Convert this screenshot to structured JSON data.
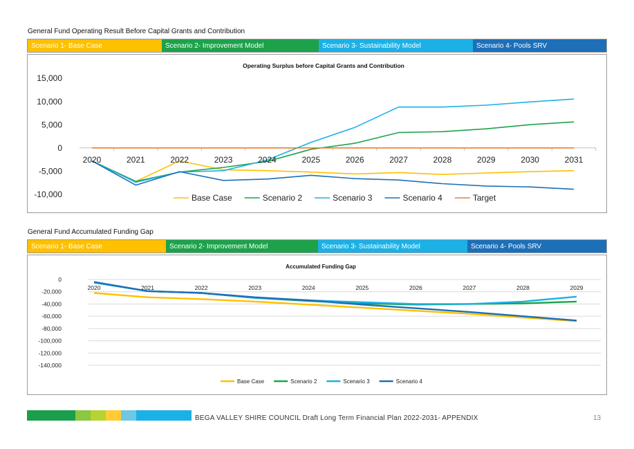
{
  "sections": [
    {
      "title": "General Fund Operating Result Before Capital Grants and Contribution",
      "legend_bar": [
        {
          "label": "Scenario 1- Base Case",
          "color": "#FFC000",
          "text_color": "#ffffff"
        },
        {
          "label": "Scenario 2- Improvement Model",
          "color": "#1DA24B",
          "text_color": "#ffffff"
        },
        {
          "label": "Scenario 3- Sustainability Model",
          "color": "#1BB1E6",
          "text_color": "#ffffff"
        },
        {
          "label": "Scenario 4- Pools SRV",
          "color": "#1D6FB8",
          "text_color": "#ffffff"
        }
      ]
    },
    {
      "title": "General Fund Accumulated Funding Gap",
      "legend_bar": [
        {
          "label": "Scenario 1- Base Case",
          "color": "#FFC000",
          "text_color": "#ffffff"
        },
        {
          "label": "Scenario 2- Improvement Model",
          "color": "#1DA24B",
          "text_color": "#ffffff"
        },
        {
          "label": "Scenario 3- Sustainability Model",
          "color": "#1BB1E6",
          "text_color": "#ffffff"
        },
        {
          "label": "Scenario 4- Pools SRV",
          "color": "#1D6FB8",
          "text_color": "#ffffff"
        }
      ]
    }
  ],
  "chart_data": [
    {
      "type": "line",
      "title": "Operating Surplus before Capital Grants and Contribution",
      "xlabel": "",
      "ylabel": "",
      "categories": [
        "2020",
        "2021",
        "2022",
        "2023",
        "2024",
        "2025",
        "2026",
        "2027",
        "2028",
        "2029",
        "2030",
        "2031"
      ],
      "ylim": [
        -10000,
        15000
      ],
      "yticks": [
        15000,
        10000,
        5000,
        0,
        -5000,
        -10000
      ],
      "ytick_labels": [
        "15,000",
        "10,000",
        "5,000",
        "0",
        "-5,000",
        "-10,000"
      ],
      "grid": false,
      "legend_position": "bottom",
      "series": [
        {
          "name": "Base Case",
          "color": "#FFC000",
          "values": [
            -2800,
            -7200,
            -2800,
            -4700,
            -4900,
            -5200,
            -5600,
            -5300,
            -5700,
            -5400,
            -5100,
            -4900
          ]
        },
        {
          "name": "Scenario 2",
          "color": "#1DA24B",
          "values": [
            -2800,
            -7200,
            -5200,
            -4200,
            -2900,
            -300,
            1000,
            3300,
            3500,
            4100,
            5000,
            5600
          ]
        },
        {
          "name": "Scenario 3",
          "color": "#1BB1E6",
          "values": [
            -2800,
            -7400,
            -5200,
            -4900,
            -2600,
            1200,
            4400,
            8800,
            8800,
            9200,
            9900,
            10500
          ]
        },
        {
          "name": "Scenario 4",
          "color": "#1D6FB8",
          "values": [
            -2800,
            -8000,
            -5100,
            -7000,
            -6700,
            -5900,
            -6600,
            -6900,
            -7700,
            -8200,
            -8400,
            -8900
          ]
        },
        {
          "name": "Target",
          "color": "#ED7D31",
          "values": [
            0,
            0,
            0,
            0,
            0,
            0,
            0,
            0,
            0,
            0,
            0,
            0
          ]
        }
      ]
    },
    {
      "type": "line",
      "title": "Accumulated Funding Gap",
      "xlabel": "",
      "ylabel": "",
      "categories": [
        "2020",
        "2021",
        "2022",
        "2023",
        "2024",
        "2025",
        "2026",
        "2027",
        "2028",
        "2029"
      ],
      "ylim": [
        -140000,
        0
      ],
      "yticks": [
        0,
        -20000,
        -40000,
        -60000,
        -80000,
        -100000,
        -120000,
        -140000
      ],
      "ytick_labels": [
        "0",
        "-20,000",
        "-40,000",
        "-60,000",
        "-80,000",
        "-100,000",
        "-120,000",
        "-140,000"
      ],
      "grid": true,
      "legend_position": "bottom",
      "series": [
        {
          "name": "Base Case",
          "color": "#FFC000",
          "values": [
            -22000,
            -29000,
            -32000,
            -36000,
            -41000,
            -46000,
            -51000,
            -56000,
            -62000,
            -68000
          ]
        },
        {
          "name": "Scenario 2",
          "color": "#1DA24B",
          "values": [
            -5000,
            -19000,
            -22000,
            -30000,
            -35000,
            -39000,
            -41000,
            -40000,
            -39000,
            -36000
          ]
        },
        {
          "name": "Scenario 3",
          "color": "#1BB1E6",
          "values": [
            -5000,
            -19000,
            -22000,
            -30000,
            -34000,
            -37000,
            -40000,
            -40000,
            -36000,
            -28000
          ]
        },
        {
          "name": "Scenario 4",
          "color": "#1D6FB8",
          "values": [
            -4000,
            -19000,
            -22000,
            -29000,
            -34000,
            -41000,
            -47000,
            -53000,
            -60000,
            -67000
          ]
        }
      ]
    }
  ],
  "footer": {
    "text": "BEGA VALLEY SHIRE COUNCIL  Draft Long Term Financial Plan 2022-2031- APPENDIX",
    "page_number": "13",
    "strip_colors": [
      "#1A9E4C",
      "#8DC63F",
      "#B5D334",
      "#FFCC33",
      "#6DC8E4",
      "#1BB1E6"
    ]
  }
}
